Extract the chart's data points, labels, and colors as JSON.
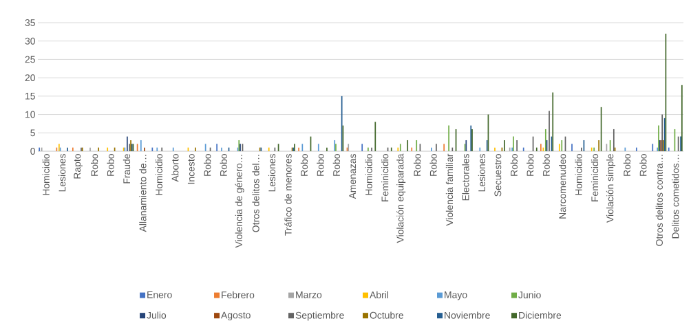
{
  "chart_data": {
    "type": "bar",
    "categories": [
      "Homicidio",
      "Lesiones",
      "Rapto",
      "Robo",
      "Robo",
      "Fraude",
      "Allanamiento de…",
      "Homicidio",
      "Aborto",
      "Incesto",
      "Robo",
      "Robo",
      "Violencia de género…",
      "Otros delitos del…",
      "Lesiones",
      "Tráfico de menores",
      "Robo",
      "Robo",
      "Robo",
      "Amenazas",
      "Homicidio",
      "Feminicidio",
      "Violación equiparada",
      "Robo",
      "Robo",
      "Violencia familiar",
      "Electorales",
      "Lesiones",
      "Secuestro",
      "Robo",
      "Robo",
      "Robo",
      "Narcomenudeo",
      "Homicidio",
      "Feminicidio",
      "Violación simple",
      "Robo",
      "Robo",
      "Otros delitos contra…",
      "Delitos cometidos…"
    ],
    "series": [
      {
        "name": "Enero",
        "color": "#4472c4",
        "values": [
          1,
          0,
          0,
          0,
          0,
          0,
          0,
          1,
          0,
          0,
          0,
          2,
          0,
          0,
          0,
          0,
          0,
          0,
          0,
          0,
          2,
          0,
          0,
          0,
          0,
          0,
          0,
          0,
          0,
          0,
          1,
          0,
          0,
          2,
          0,
          0,
          0,
          1,
          2,
          1
        ]
      },
      {
        "name": "Febrero",
        "color": "#ed7d31",
        "values": [
          0,
          1,
          1,
          0,
          0,
          0,
          2,
          0,
          0,
          0,
          0,
          0,
          0,
          0,
          0,
          0,
          1,
          0,
          0,
          1,
          0,
          0,
          0,
          1,
          0,
          2,
          0,
          0,
          0,
          0,
          0,
          2,
          0,
          0,
          0,
          0,
          0,
          0,
          0,
          0
        ]
      },
      {
        "name": "Marzo",
        "color": "#a5a5a5",
        "values": [
          1,
          0,
          0,
          1,
          0,
          0,
          0,
          0,
          0,
          0,
          0,
          0,
          0,
          0,
          0,
          0,
          0,
          0,
          0,
          2,
          0,
          0,
          0,
          0,
          0,
          0,
          0,
          0,
          0,
          1,
          0,
          0,
          0,
          0,
          0,
          2,
          0,
          0,
          0,
          0
        ]
      },
      {
        "name": "Abril",
        "color": "#ffc000",
        "values": [
          0,
          2,
          0,
          0,
          1,
          1,
          0,
          0,
          0,
          1,
          0,
          0,
          0,
          0,
          1,
          0,
          0,
          0,
          0,
          0,
          0,
          0,
          1,
          0,
          0,
          0,
          0,
          0,
          1,
          0,
          0,
          1,
          2,
          0,
          1,
          0,
          0,
          0,
          0,
          0
        ]
      },
      {
        "name": "Mayo",
        "color": "#5b9bd5",
        "values": [
          0,
          1,
          0,
          0,
          0,
          1,
          3,
          1,
          1,
          0,
          2,
          1,
          1,
          0,
          0,
          0,
          2,
          2,
          3,
          0,
          0,
          0,
          0,
          0,
          1,
          0,
          0,
          1,
          0,
          1,
          0,
          0,
          0,
          0,
          0,
          0,
          1,
          0,
          1,
          0
        ]
      },
      {
        "name": "Junio",
        "color": "#70ad47",
        "values": [
          0,
          0,
          0,
          0,
          0,
          0,
          0,
          0,
          0,
          0,
          0,
          0,
          3,
          0,
          0,
          0,
          0,
          0,
          2,
          0,
          1,
          0,
          2,
          3,
          0,
          7,
          2,
          0,
          0,
          4,
          0,
          6,
          3,
          0,
          1,
          3,
          0,
          0,
          7,
          6
        ]
      },
      {
        "name": "Julio",
        "color": "#264478",
        "values": [
          0,
          0,
          0,
          0,
          0,
          4,
          0,
          0,
          0,
          0,
          0,
          0,
          2,
          0,
          0,
          0,
          0,
          0,
          0,
          0,
          0,
          0,
          0,
          0,
          0,
          0,
          3,
          0,
          0,
          0,
          0,
          3,
          0,
          0,
          0,
          0,
          0,
          0,
          3,
          0
        ]
      },
      {
        "name": "Agosto",
        "color": "#9e480e",
        "values": [
          0,
          0,
          0,
          0,
          0,
          0,
          1,
          0,
          0,
          0,
          0,
          0,
          0,
          0,
          0,
          0,
          0,
          0,
          0,
          0,
          0,
          0,
          0,
          0,
          0,
          0,
          0,
          0,
          0,
          0,
          0,
          0,
          0,
          0,
          0,
          0,
          0,
          0,
          3,
          0
        ]
      },
      {
        "name": "Septiembre",
        "color": "#636363",
        "values": [
          0,
          0,
          1,
          0,
          0,
          2,
          0,
          1,
          0,
          0,
          1,
          0,
          2,
          0,
          1,
          0,
          0,
          0,
          0,
          0,
          1,
          1,
          0,
          2,
          2,
          1,
          0,
          0,
          0,
          3,
          4,
          11,
          4,
          1,
          0,
          6,
          0,
          0,
          10,
          4
        ]
      },
      {
        "name": "Octubre",
        "color": "#997300",
        "values": [
          0,
          0,
          1,
          1,
          1,
          3,
          0,
          0,
          0,
          1,
          0,
          0,
          0,
          1,
          0,
          1,
          0,
          0,
          0,
          0,
          0,
          0,
          0,
          0,
          0,
          0,
          0,
          0,
          1,
          0,
          0,
          0,
          0,
          0,
          3,
          1,
          0,
          0,
          3,
          0
        ]
      },
      {
        "name": "Noviembre",
        "color": "#255e91",
        "values": [
          0,
          1,
          0,
          0,
          0,
          2,
          0,
          0,
          0,
          0,
          0,
          1,
          0,
          1,
          0,
          1,
          0,
          0,
          15,
          0,
          0,
          0,
          0,
          0,
          0,
          0,
          7,
          3,
          0,
          0,
          0,
          4,
          0,
          3,
          0,
          0,
          0,
          0,
          9,
          4
        ]
      },
      {
        "name": "Diciembre",
        "color": "#43682b",
        "values": [
          0,
          0,
          0,
          0,
          0,
          2,
          0,
          0,
          0,
          0,
          0,
          0,
          0,
          0,
          2,
          2,
          4,
          1,
          7,
          0,
          8,
          1,
          3,
          0,
          0,
          6,
          6,
          10,
          3,
          0,
          1,
          16,
          0,
          0,
          12,
          0,
          0,
          0,
          32,
          18
        ]
      }
    ],
    "ylim": [
      0,
      35
    ],
    "yticks": [
      0,
      5,
      10,
      15,
      20,
      25,
      30,
      35
    ],
    "grid": "y",
    "legend": "bottom"
  }
}
